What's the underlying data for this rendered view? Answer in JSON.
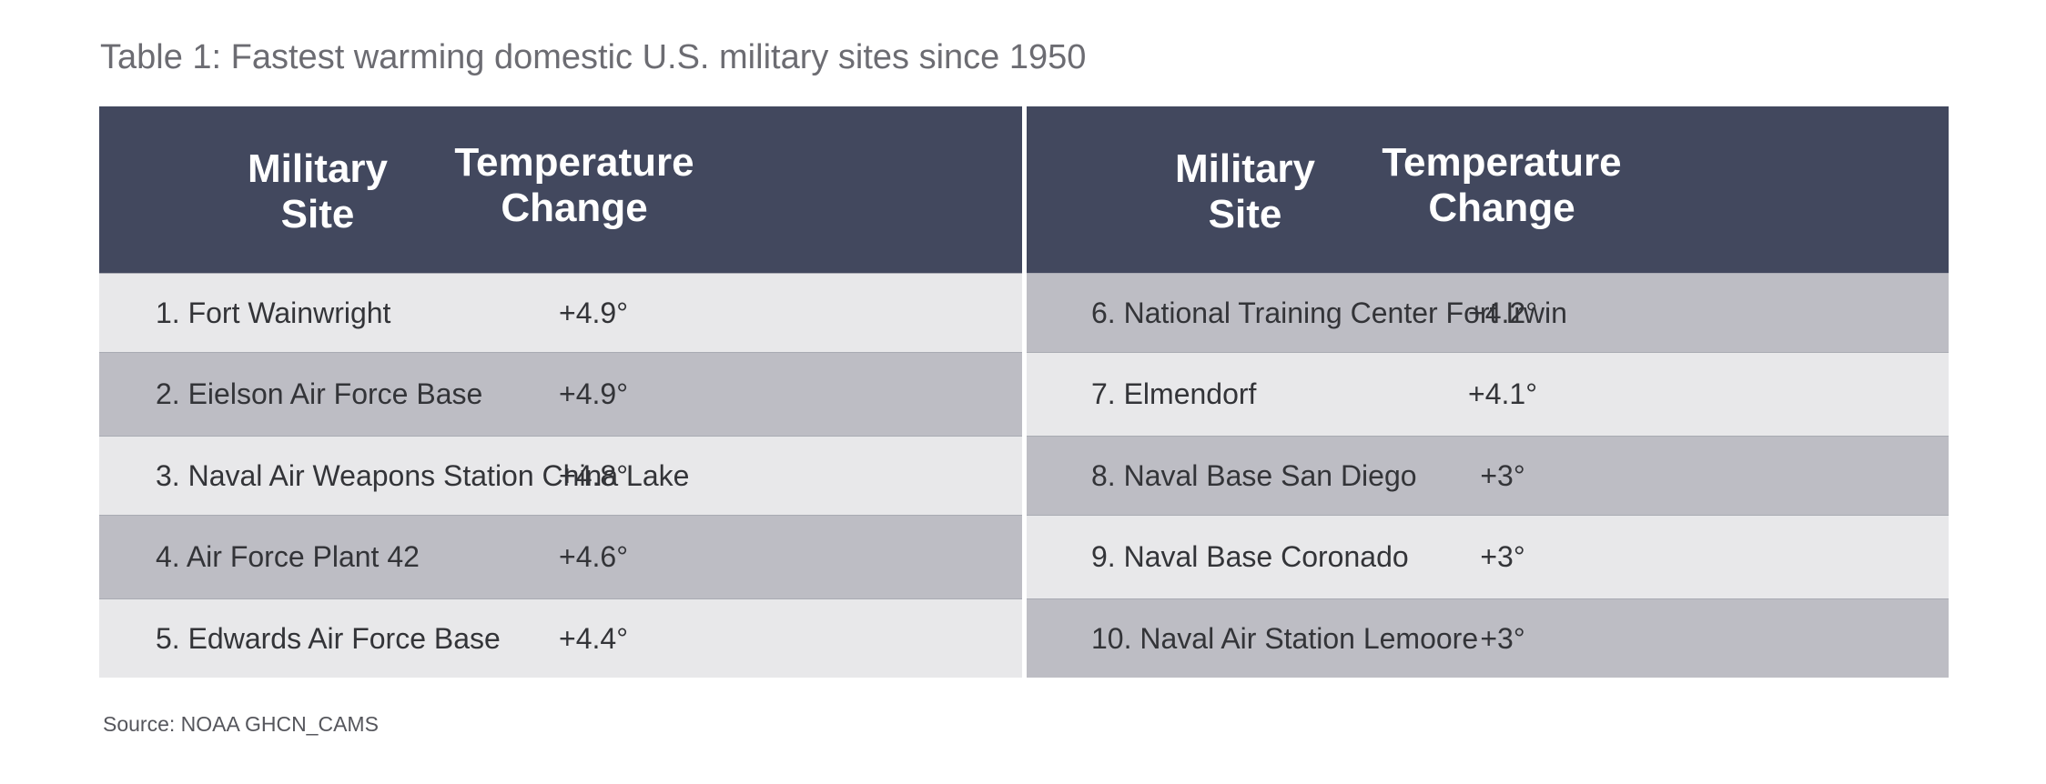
{
  "chart_data": {
    "type": "table",
    "title": "Table 1: Fastest warming domestic U.S. military sites since 1950",
    "columns": [
      "Military Site",
      "Temperature Change"
    ],
    "header": {
      "site_line1": "Military",
      "site_line2": "Site",
      "temp_line1": "Temperature",
      "temp_line2": "Change"
    },
    "left_rows": [
      {
        "site": "1. Fort Wainwright",
        "change": "+4.9°"
      },
      {
        "site": "2. Eielson Air Force Base",
        "change": "+4.9°"
      },
      {
        "site": "3. Naval Air Weapons Station China Lake",
        "change": "+4.8°"
      },
      {
        "site": "4. Air Force Plant 42",
        "change": "+4.6°"
      },
      {
        "site": "5. Edwards Air Force Base",
        "change": "+4.4°"
      }
    ],
    "right_rows": [
      {
        "site": "6. National Training Center Fort Irwin",
        "change": "+4.2°"
      },
      {
        "site": "7. Elmendorf",
        "change": "+4.1°"
      },
      {
        "site": "8. Naval Base San Diego",
        "change": "+3°"
      },
      {
        "site": "9. Naval Base Coronado",
        "change": "+3°"
      },
      {
        "site": "10. Naval Air Station Lemoore",
        "change": "+3°"
      }
    ],
    "values": [
      4.9,
      4.9,
      4.8,
      4.6,
      4.4,
      4.2,
      4.1,
      3,
      3,
      3
    ],
    "source": "Source: NOAA GHCN_CAMS"
  },
  "colors": {
    "header_bg": "#42485e",
    "row_light": "#e8e8ea",
    "row_dark": "#bdbdc4",
    "title_text": "#6c6c72",
    "body_text": "#333438"
  }
}
